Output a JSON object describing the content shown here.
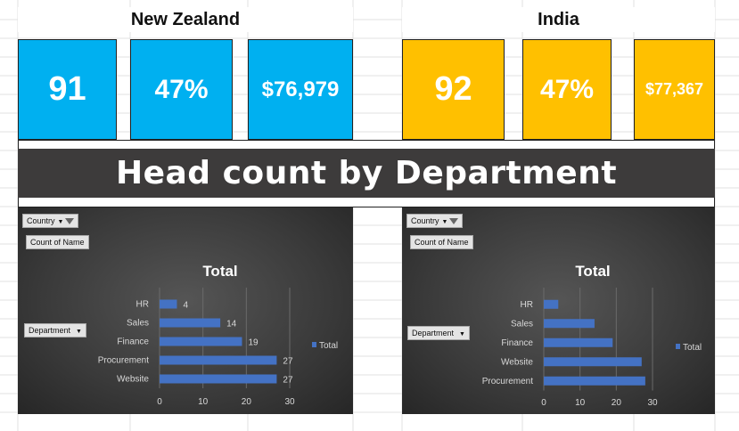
{
  "colors": {
    "blue": "#00b0f0",
    "gold": "#ffc000",
    "banner": "#3d3b3b",
    "bar": "#4472c4"
  },
  "regions": [
    {
      "title": "New Zealand",
      "kpis": [
        "91",
        "47%",
        "$76,979"
      ]
    },
    {
      "title": "India",
      "kpis": [
        "92",
        "47%",
        "$77,367"
      ]
    }
  ],
  "banner": {
    "title": "Head count by Department"
  },
  "pivot": {
    "country_label": "Country",
    "count_label": "Count of Name",
    "department_label": "Department"
  },
  "chart_data": [
    {
      "type": "bar",
      "orientation": "horizontal",
      "title": "Total",
      "categories": [
        "HR",
        "Sales",
        "Finance",
        "Procurement",
        "Website"
      ],
      "series": [
        {
          "name": "Total",
          "values": [
            4,
            14,
            19,
            27,
            27
          ]
        }
      ],
      "data_labels": true,
      "xlim": [
        0,
        30
      ],
      "xticks": [
        "0",
        "10",
        "20",
        "30"
      ],
      "legend": "right",
      "grid": true
    },
    {
      "type": "bar",
      "orientation": "horizontal",
      "title": "Total",
      "categories": [
        "HR",
        "Sales",
        "Finance",
        "Website",
        "Procurement"
      ],
      "series": [
        {
          "name": "Total",
          "values": [
            4,
            14,
            19,
            27,
            28
          ]
        }
      ],
      "data_labels": false,
      "xlim": [
        0,
        30
      ],
      "xticks": [
        "0",
        "10",
        "20",
        "30"
      ],
      "legend": "right",
      "grid": true
    }
  ]
}
